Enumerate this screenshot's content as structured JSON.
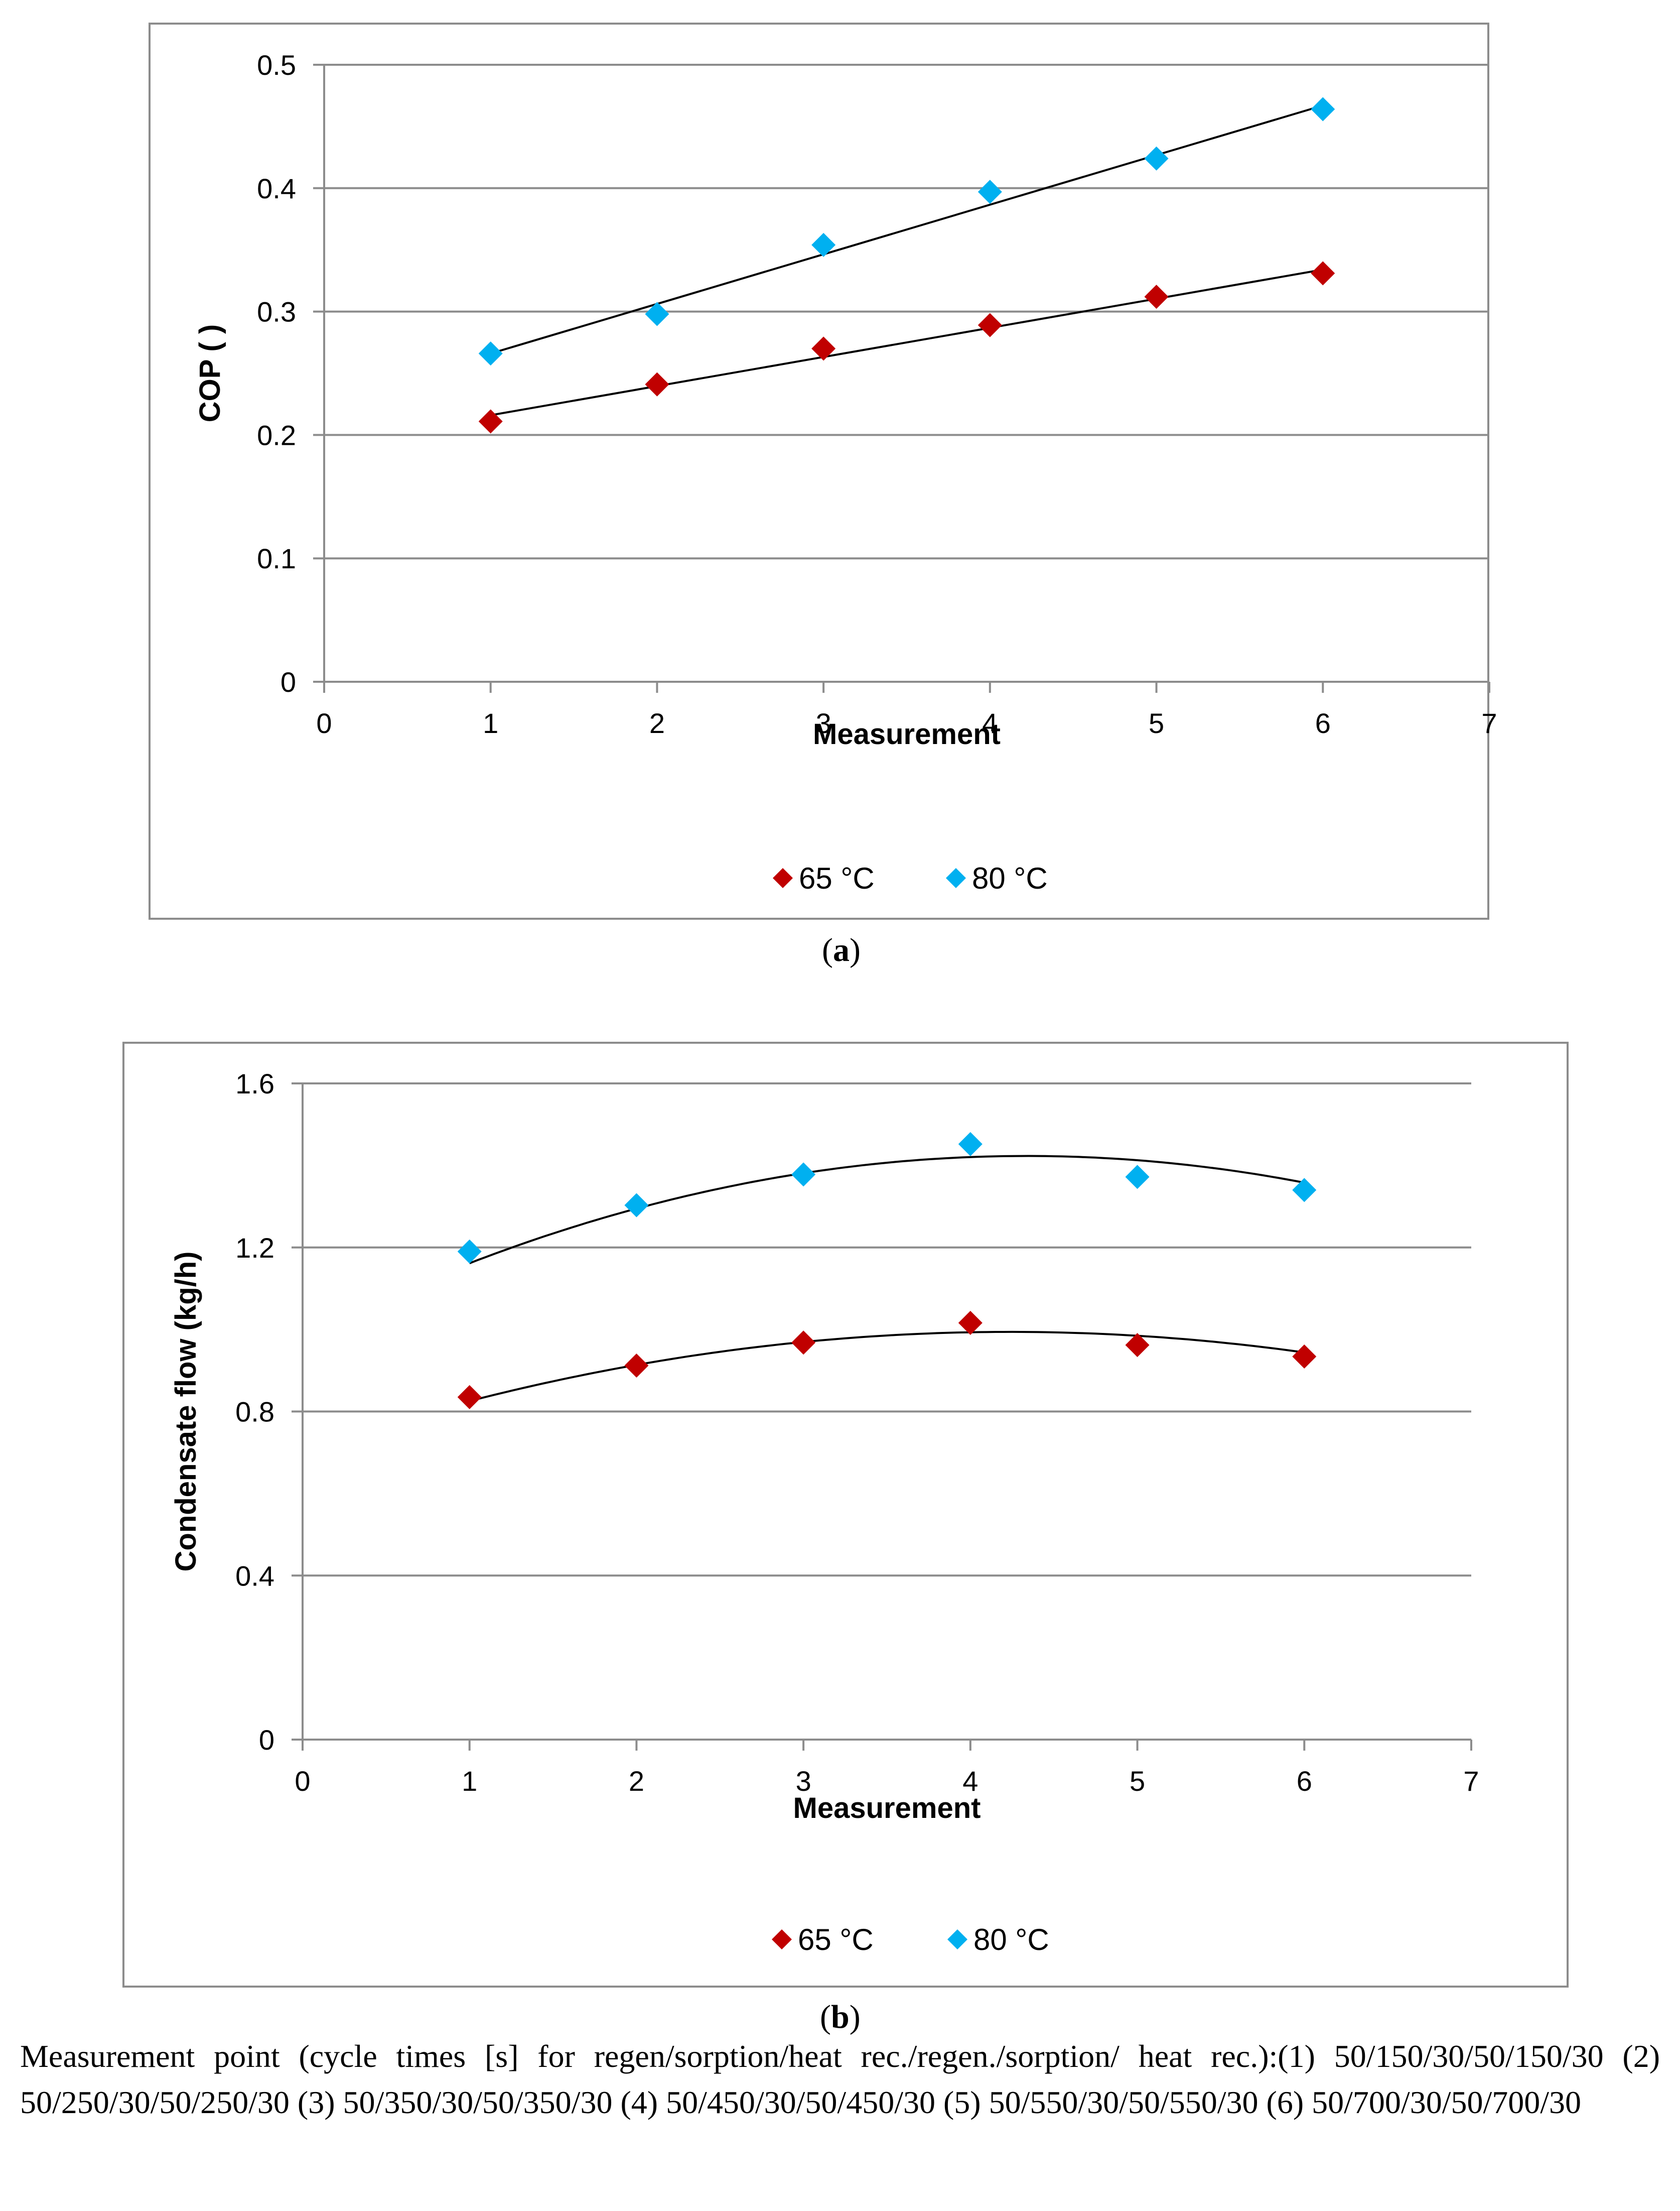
{
  "chart_data": [
    {
      "id": "a",
      "type": "scatter",
      "caption": "a",
      "xlabel": "Measurement",
      "ylabel": "COP ( )",
      "xlim": [
        0,
        7
      ],
      "ylim": [
        0,
        0.5
      ],
      "xticks": [
        0,
        1,
        2,
        3,
        4,
        5,
        6,
        7
      ],
      "yticks": [
        0,
        0.1,
        0.2,
        0.3,
        0.4,
        0.5
      ],
      "ytick_labels": [
        "0",
        "0.1",
        "0.2",
        "0.3",
        "0.4",
        "0.5"
      ],
      "legend_position": "bottom",
      "trendline": "linear",
      "series": [
        {
          "name": "65 °C",
          "color": "#c00000",
          "x": [
            1,
            2,
            3,
            4,
            5,
            6
          ],
          "y": [
            0.211,
            0.241,
            0.27,
            0.289,
            0.312,
            0.331
          ],
          "trend": [
            0.216,
            0.2396,
            0.2632,
            0.2868,
            0.3104,
            0.334
          ]
        },
        {
          "name": "80 °C",
          "color": "#00b0f0",
          "x": [
            1,
            2,
            3,
            4,
            5,
            6
          ],
          "y": [
            0.266,
            0.298,
            0.354,
            0.397,
            0.424,
            0.464
          ],
          "trend": [
            0.266,
            0.3062,
            0.3464,
            0.3866,
            0.4268,
            0.467
          ]
        }
      ]
    },
    {
      "id": "b",
      "type": "scatter",
      "caption": "b",
      "xlabel": "Measurement",
      "ylabel": "Condensate flow (kg/h)",
      "xlim": [
        0,
        7
      ],
      "ylim": [
        0,
        1.6
      ],
      "xticks": [
        0,
        1,
        2,
        3,
        4,
        5,
        6,
        7
      ],
      "yticks": [
        0,
        0.4,
        0.8,
        1.2,
        1.6
      ],
      "ytick_labels": [
        "0",
        "0.4",
        "0.8",
        "1.2",
        "1.6"
      ],
      "legend_position": "bottom",
      "trendline": "polynomial",
      "series": [
        {
          "name": "65 °C",
          "color": "#c00000",
          "x": [
            1,
            2,
            3,
            4,
            5,
            6
          ],
          "y": [
            0.835,
            0.912,
            0.968,
            1.016,
            0.962,
            0.934
          ],
          "trend_coef": [
            -0.0161,
            0.1364,
            0.7052
          ]
        },
        {
          "name": "80 °C",
          "color": "#00b0f0",
          "x": [
            1,
            2,
            3,
            4,
            5,
            6
          ],
          "y": [
            1.19,
            1.303,
            1.378,
            1.452,
            1.372,
            1.34
          ],
          "trend_coef": [
            -0.0235,
            0.2038,
            0.9812
          ]
        }
      ]
    }
  ],
  "captions": {
    "a": "a",
    "b": "b"
  },
  "footnote": "Measurement point (cycle times [s] for regen/sorption/heat rec./regen./sorption/ heat rec.):(1) 50/150/30/50/150/30 (2) 50/250/30/50/250/30 (3) 50/350/30/50/350/30 (4) 50/450/30/50/450/30 (5) 50/550/30/50/550/30 (6) 50/700/30/50/700/30"
}
